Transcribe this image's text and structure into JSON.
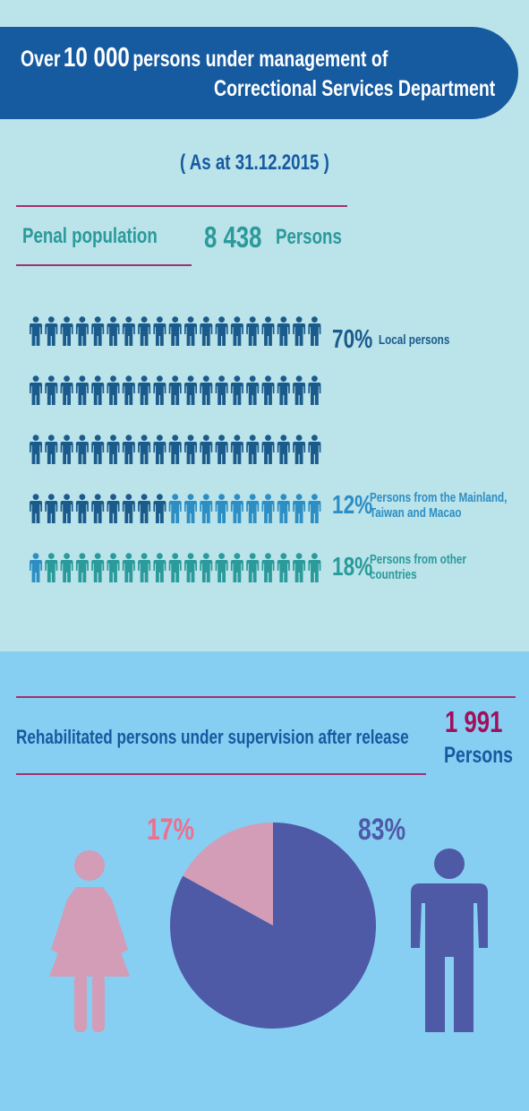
{
  "header": {
    "line1_pre": "Over",
    "line1_number": "10 000",
    "line1_post": "persons under management of",
    "line2": "Correctional Services Department"
  },
  "as_at": "( As at 31.12.2015 )",
  "penal": {
    "label": "Penal population",
    "number": "8 438",
    "unit": "Persons"
  },
  "breakdown": [
    {
      "percent": "70",
      "pct_sign": "%",
      "label": [
        "Local persons"
      ],
      "color": "#1a5b8c"
    },
    {
      "percent": "12",
      "pct_sign": "%",
      "label": [
        "Persons from the Mainland,",
        "Taiwan and Macao"
      ],
      "color": "#2d8ec4"
    },
    {
      "percent": "18",
      "pct_sign": "%",
      "label": [
        "Persons from other",
        "countries"
      ],
      "color": "#2a9a9a"
    }
  ],
  "rehab": {
    "label": "Rehabilitated persons under supervision after release",
    "number": "1 991",
    "unit": "Persons",
    "female_percent": "17%",
    "male_percent": "83%"
  },
  "colors": {
    "navy": "#165aa0",
    "local": "#1a5b8c",
    "mainland": "#2d8ec4",
    "other": "#2a9a9a",
    "female": "#d39cb7",
    "male": "#4f5aa6",
    "magenta": "#a0105a"
  },
  "chart_data": [
    {
      "type": "pictogram",
      "title": "Penal population",
      "total": 8438,
      "unit": "Persons",
      "icons_per_row": 19,
      "rows": 5,
      "categories": [
        "Local persons",
        "Persons from the Mainland, Taiwan and Macao",
        "Persons from other countries"
      ],
      "values": [
        70,
        12,
        18
      ],
      "icon_counts": [
        66,
        11,
        18
      ]
    },
    {
      "type": "pie",
      "title": "Rehabilitated persons under supervision after release",
      "total": 1991,
      "unit": "Persons",
      "categories": [
        "female",
        "male"
      ],
      "values": [
        17,
        83
      ]
    }
  ]
}
